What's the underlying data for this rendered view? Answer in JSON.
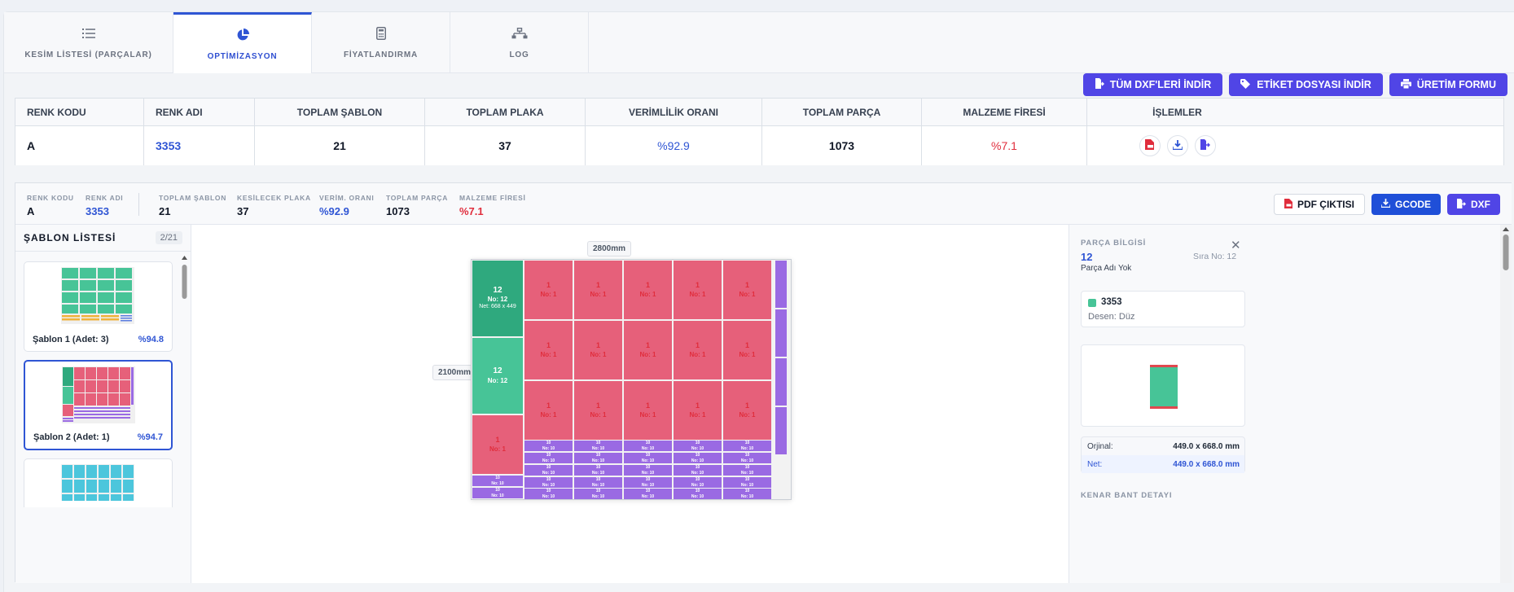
{
  "tabs": [
    {
      "label": "KESİM LİSTESİ (PARÇALAR)",
      "icon": "list-icon"
    },
    {
      "label": "OPTİMİZASYON",
      "icon": "pie-chart-icon"
    },
    {
      "label": "FİYATLANDIRMA",
      "icon": "calculator-icon"
    },
    {
      "label": "LOG",
      "icon": "network-icon"
    }
  ],
  "toolbar": {
    "download_dxf": "TÜM DXF'LERİ İNDİR",
    "download_label": "ETİKET DOSYASI İNDİR",
    "production_form": "ÜRETİM FORMU"
  },
  "summary": {
    "headers": [
      "RENK KODU",
      "RENK ADI",
      "TOPLAM ŞABLON",
      "TOPLAM PLAKA",
      "VERİMLİLİK ORANI",
      "TOPLAM PARÇA",
      "MALZEME FİRESİ",
      "İŞLEMLER"
    ],
    "row": {
      "renk_kodu": "A",
      "renk_adi": "3353",
      "toplam_sablon": "21",
      "toplam_plaka": "37",
      "verimlilik": "%92.9",
      "toplam_parca": "1073",
      "fire": "%7.1"
    }
  },
  "detail": {
    "stats": {
      "renk_kodu_lbl": "RENK KODU",
      "renk_kodu": "A",
      "renk_adi_lbl": "RENK ADI",
      "renk_adi": "3353",
      "sablon_lbl": "TOPLAM ŞABLON",
      "sablon": "21",
      "plaka_lbl": "KESİLECEK PLAKA",
      "plaka": "37",
      "verim_lbl": "VERİM. ORANI",
      "verim": "%92.9",
      "parca_lbl": "TOPLAM PARÇA",
      "parca": "1073",
      "fire_lbl": "MALZEME FİRESİ",
      "fire": "%7.1"
    },
    "buttons": {
      "pdf": "PDF ÇIKTISI",
      "gcode": "GCODE",
      "dxf": "DXF"
    }
  },
  "templates": {
    "title": "ŞABLON LİSTESİ",
    "pager": "2/21",
    "items": [
      {
        "name": "Şablon 1 (Adet: 3)",
        "rate": "%94.8"
      },
      {
        "name": "Şablon 2 (Adet: 1)",
        "rate": "%94.7"
      }
    ]
  },
  "canvas": {
    "width_label": "2800mm",
    "height_label": "2100mm",
    "piece_num": "1",
    "piece_no": "No: 1",
    "green_num": "12",
    "green_no": "No: 12",
    "green_net": "Net: 668 x 449",
    "small_num": "10",
    "small_no": "No: 10"
  },
  "info": {
    "label": "PARÇA BİLGİSİ",
    "part_no": "12",
    "sira": "Sıra No: 12",
    "part_name": "Parça Adı Yok",
    "color_name": "3353",
    "desen": "Desen: Düz",
    "orjinal_lbl": "Orjinal:",
    "orjinal": "449.0 x 668.0 mm",
    "net_lbl": "Net:",
    "net": "449.0 x 668.0 mm",
    "edge_label": "KENAR BANT DETAYI"
  },
  "colors": {
    "accent": "#2f55d4",
    "purple": "#5045e6",
    "piece_red": "#e6607a",
    "piece_green": "#47c497",
    "piece_purple": "#9a6ae3"
  }
}
